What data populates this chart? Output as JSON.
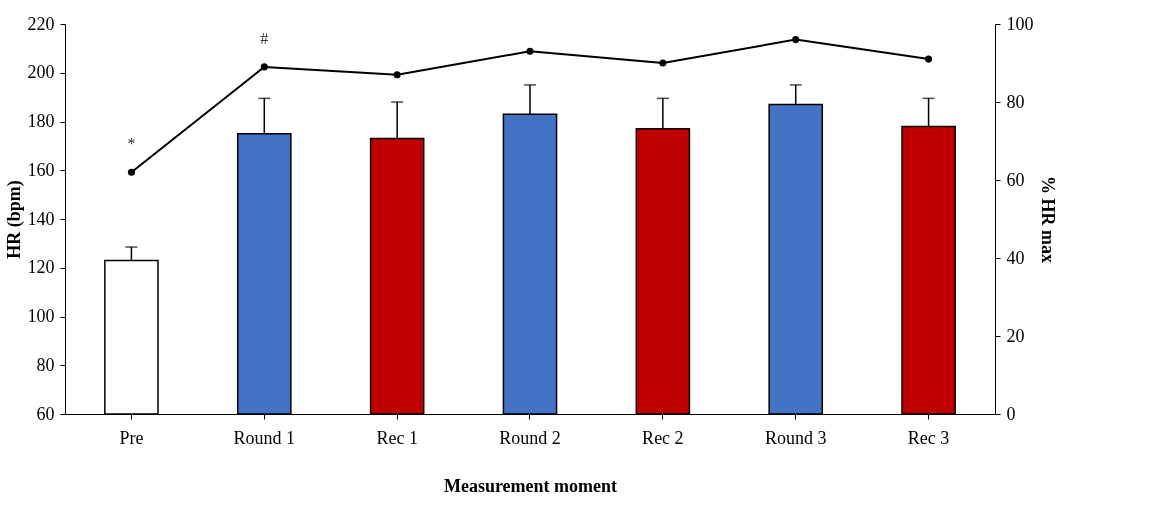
{
  "chart_data": {
    "type": "bar",
    "xlabel": "Measurement moment",
    "ylabel": "HR (bpm)",
    "y2label": "% HR max",
    "categories": [
      "Pre",
      "Round 1",
      "Rec 1",
      "Round 2",
      "Rec 2",
      "Round 3",
      "Rec 3"
    ],
    "series": [
      {
        "colors": [
          "#ffffff",
          "#4472c4",
          "#c00000",
          "#4472c4",
          "#c00000",
          "#4472c4",
          "#c00000"
        ],
        "values": [
          123,
          175,
          173,
          183,
          177,
          187,
          178
        ],
        "errors": [
          [
            123,
            128.5
          ],
          [
            175,
            189.5
          ],
          [
            173,
            188
          ],
          [
            183,
            195
          ],
          [
            177,
            189.5
          ],
          [
            187,
            195
          ],
          [
            178,
            189.5
          ]
        ]
      },
      {
        "type": "line",
        "axis": "y2",
        "color": "#000000",
        "values": [
          62,
          89,
          87,
          93,
          90,
          96,
          91
        ]
      }
    ],
    "ylim": [
      60,
      220
    ],
    "yticks": [
      60,
      80,
      100,
      120,
      140,
      160,
      180,
      200,
      220
    ],
    "y2lim": [
      0,
      100
    ],
    "y2ticks": [
      0,
      20,
      40,
      60,
      80,
      100
    ],
    "marker": "circle",
    "line_style": "solid",
    "grid": false,
    "annotations": [
      "*",
      "#"
    ]
  }
}
